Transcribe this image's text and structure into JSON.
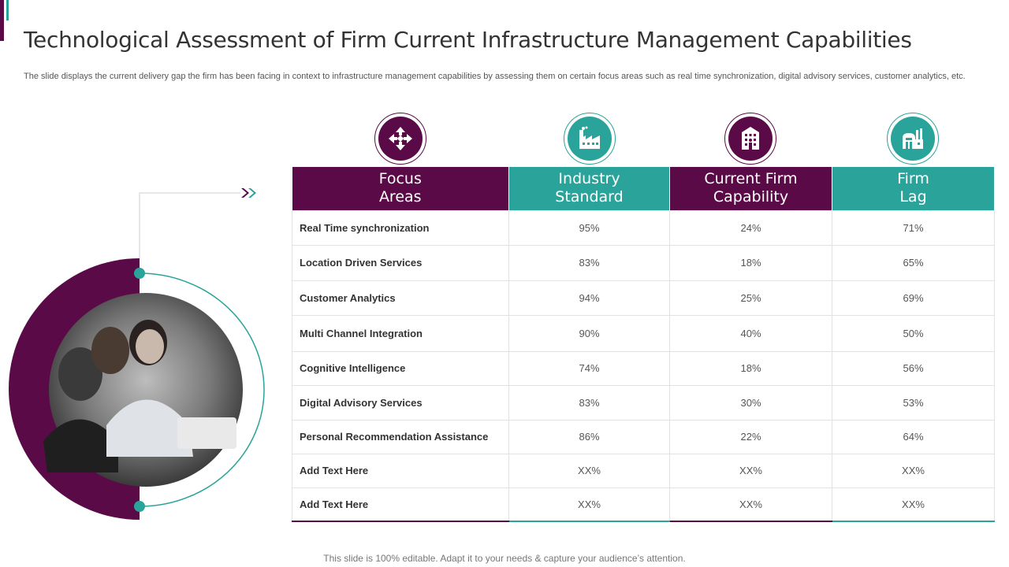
{
  "slide": {
    "title": "Technological Assessment of Firm Current Infrastructure Management Capabilities",
    "subtitle": "The slide displays the current delivery gap the firm has been facing in context to infrastructure management capabilities by assessing them on certain focus areas such as real time synchronization, digital advisory services, customer analytics, etc.",
    "footer": "This slide is 100% editable. Adapt it to your needs & capture your audience’s attention."
  },
  "colors": {
    "purple": "#5b0a48",
    "teal": "#2aa39a"
  },
  "icons": [
    "arrows-in-icon",
    "factory-icon",
    "building-icon",
    "plant-icon"
  ],
  "table": {
    "headers": [
      "Focus\nAreas",
      "Industry\nStandard",
      "Current Firm\nCapability",
      "Firm\nLag"
    ],
    "rows": [
      [
        "Real Time synchronization",
        "95%",
        "24%",
        "71%"
      ],
      [
        "Location Driven Services",
        "83%",
        "18%",
        "65%"
      ],
      [
        "Customer  Analytics",
        "94%",
        "25%",
        "69%"
      ],
      [
        "Multi Channel Integration",
        "90%",
        "40%",
        "50%"
      ],
      [
        "Cognitive Intelligence",
        "74%",
        "18%",
        "56%"
      ],
      [
        "Digital Advisory  Services",
        "83%",
        "30%",
        "53%"
      ],
      [
        "Personal Recommendation Assistance",
        "86%",
        "22%",
        "64%"
      ],
      [
        "Add Text Here",
        "XX%",
        "XX%",
        "XX%"
      ],
      [
        "Add Text Here",
        "XX%",
        "XX%",
        "XX%"
      ]
    ]
  }
}
